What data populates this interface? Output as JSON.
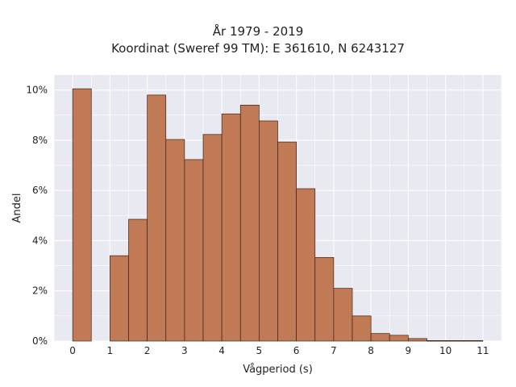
{
  "chart_data": {
    "type": "bar",
    "title": "År 1979 - 2019",
    "subtitle": "Koordinat (Sweref 99 TM): E 361610, N 6243127",
    "xlabel": "Vågperiod (s)",
    "ylabel": "Andel",
    "bin_width": 0.5,
    "x": [
      0,
      1,
      1.5,
      2,
      2.5,
      3,
      3.5,
      4,
      4.5,
      5,
      5.5,
      6,
      6.5,
      7,
      7.5,
      8,
      8.5,
      9,
      9.5,
      10,
      10.5
    ],
    "values": [
      10.05,
      3.4,
      4.85,
      9.8,
      8.03,
      7.23,
      8.23,
      9.05,
      9.4,
      8.77,
      7.93,
      6.07,
      3.33,
      2.1,
      1.0,
      0.3,
      0.23,
      0.1,
      0.02,
      0.02,
      0.02
    ],
    "xlim": [
      -0.5,
      11.5
    ],
    "ylim": [
      0,
      10.6
    ],
    "xticks": [
      0,
      1,
      2,
      3,
      4,
      5,
      6,
      7,
      8,
      9,
      10,
      11
    ],
    "xtick_labels": [
      "0",
      "1",
      "2",
      "3",
      "4",
      "5",
      "6",
      "7",
      "8",
      "9",
      "10",
      "11"
    ],
    "yticks": [
      0,
      2,
      4,
      6,
      8,
      10
    ],
    "ytick_labels": [
      "0%",
      "2%",
      "4%",
      "6%",
      "8%",
      "10%"
    ],
    "grid": true,
    "colors": {
      "bar": "#c07a55",
      "bar_edge": "#3b2418",
      "plot_background": "#e9e9f1",
      "grid": "#ffffff"
    }
  }
}
